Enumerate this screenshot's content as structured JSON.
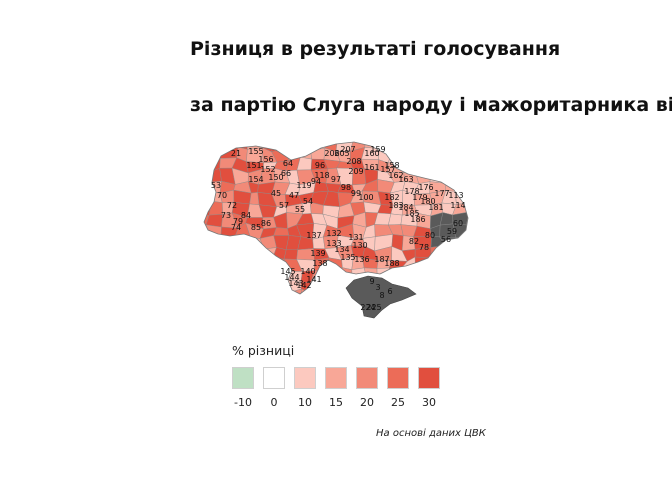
{
  "title": {
    "line1": "Різниця в результаті голосування",
    "line2": "за партію Слуга народу і мажоритарника від"
  },
  "legend": {
    "title": "% різниці",
    "items": [
      {
        "label": "-10",
        "color": "#bfe0c4"
      },
      {
        "label": "0",
        "color": "#ffffff"
      },
      {
        "label": "10",
        "color": "#fcc9bf"
      },
      {
        "label": "15",
        "color": "#f8a797"
      },
      {
        "label": "20",
        "color": "#f28a78"
      },
      {
        "label": "25",
        "color": "#ec6c58"
      },
      {
        "label": "30",
        "color": "#e14f3e"
      }
    ],
    "no_data_color": "#5a5a5a"
  },
  "caption": "На основі даних ЦВК",
  "map": {
    "district_labels": [
      "21",
      "155",
      "64",
      "207",
      "159",
      "206",
      "205",
      "160",
      "208",
      "156",
      "151",
      "152",
      "66",
      "96",
      "209",
      "161",
      "158",
      "157",
      "162",
      "163",
      "150",
      "154",
      "176",
      "177",
      "113",
      "114",
      "94",
      "119",
      "118",
      "97",
      "98",
      "99",
      "100",
      "183",
      "184",
      "185",
      "186",
      "182",
      "178",
      "179",
      "180",
      "181",
      "70",
      "72",
      "84",
      "79",
      "73",
      "74",
      "85",
      "86",
      "137",
      "132",
      "131",
      "130",
      "139",
      "138",
      "135",
      "136",
      "133",
      "134",
      "187",
      "188",
      "140",
      "141",
      "142",
      "143",
      "144",
      "145",
      "9",
      "3",
      "8",
      "6",
      "224",
      "225",
      "82",
      "78",
      "80",
      "56",
      "59",
      "60",
      "45",
      "47",
      "57",
      "55",
      "54",
      "53"
    ]
  }
}
